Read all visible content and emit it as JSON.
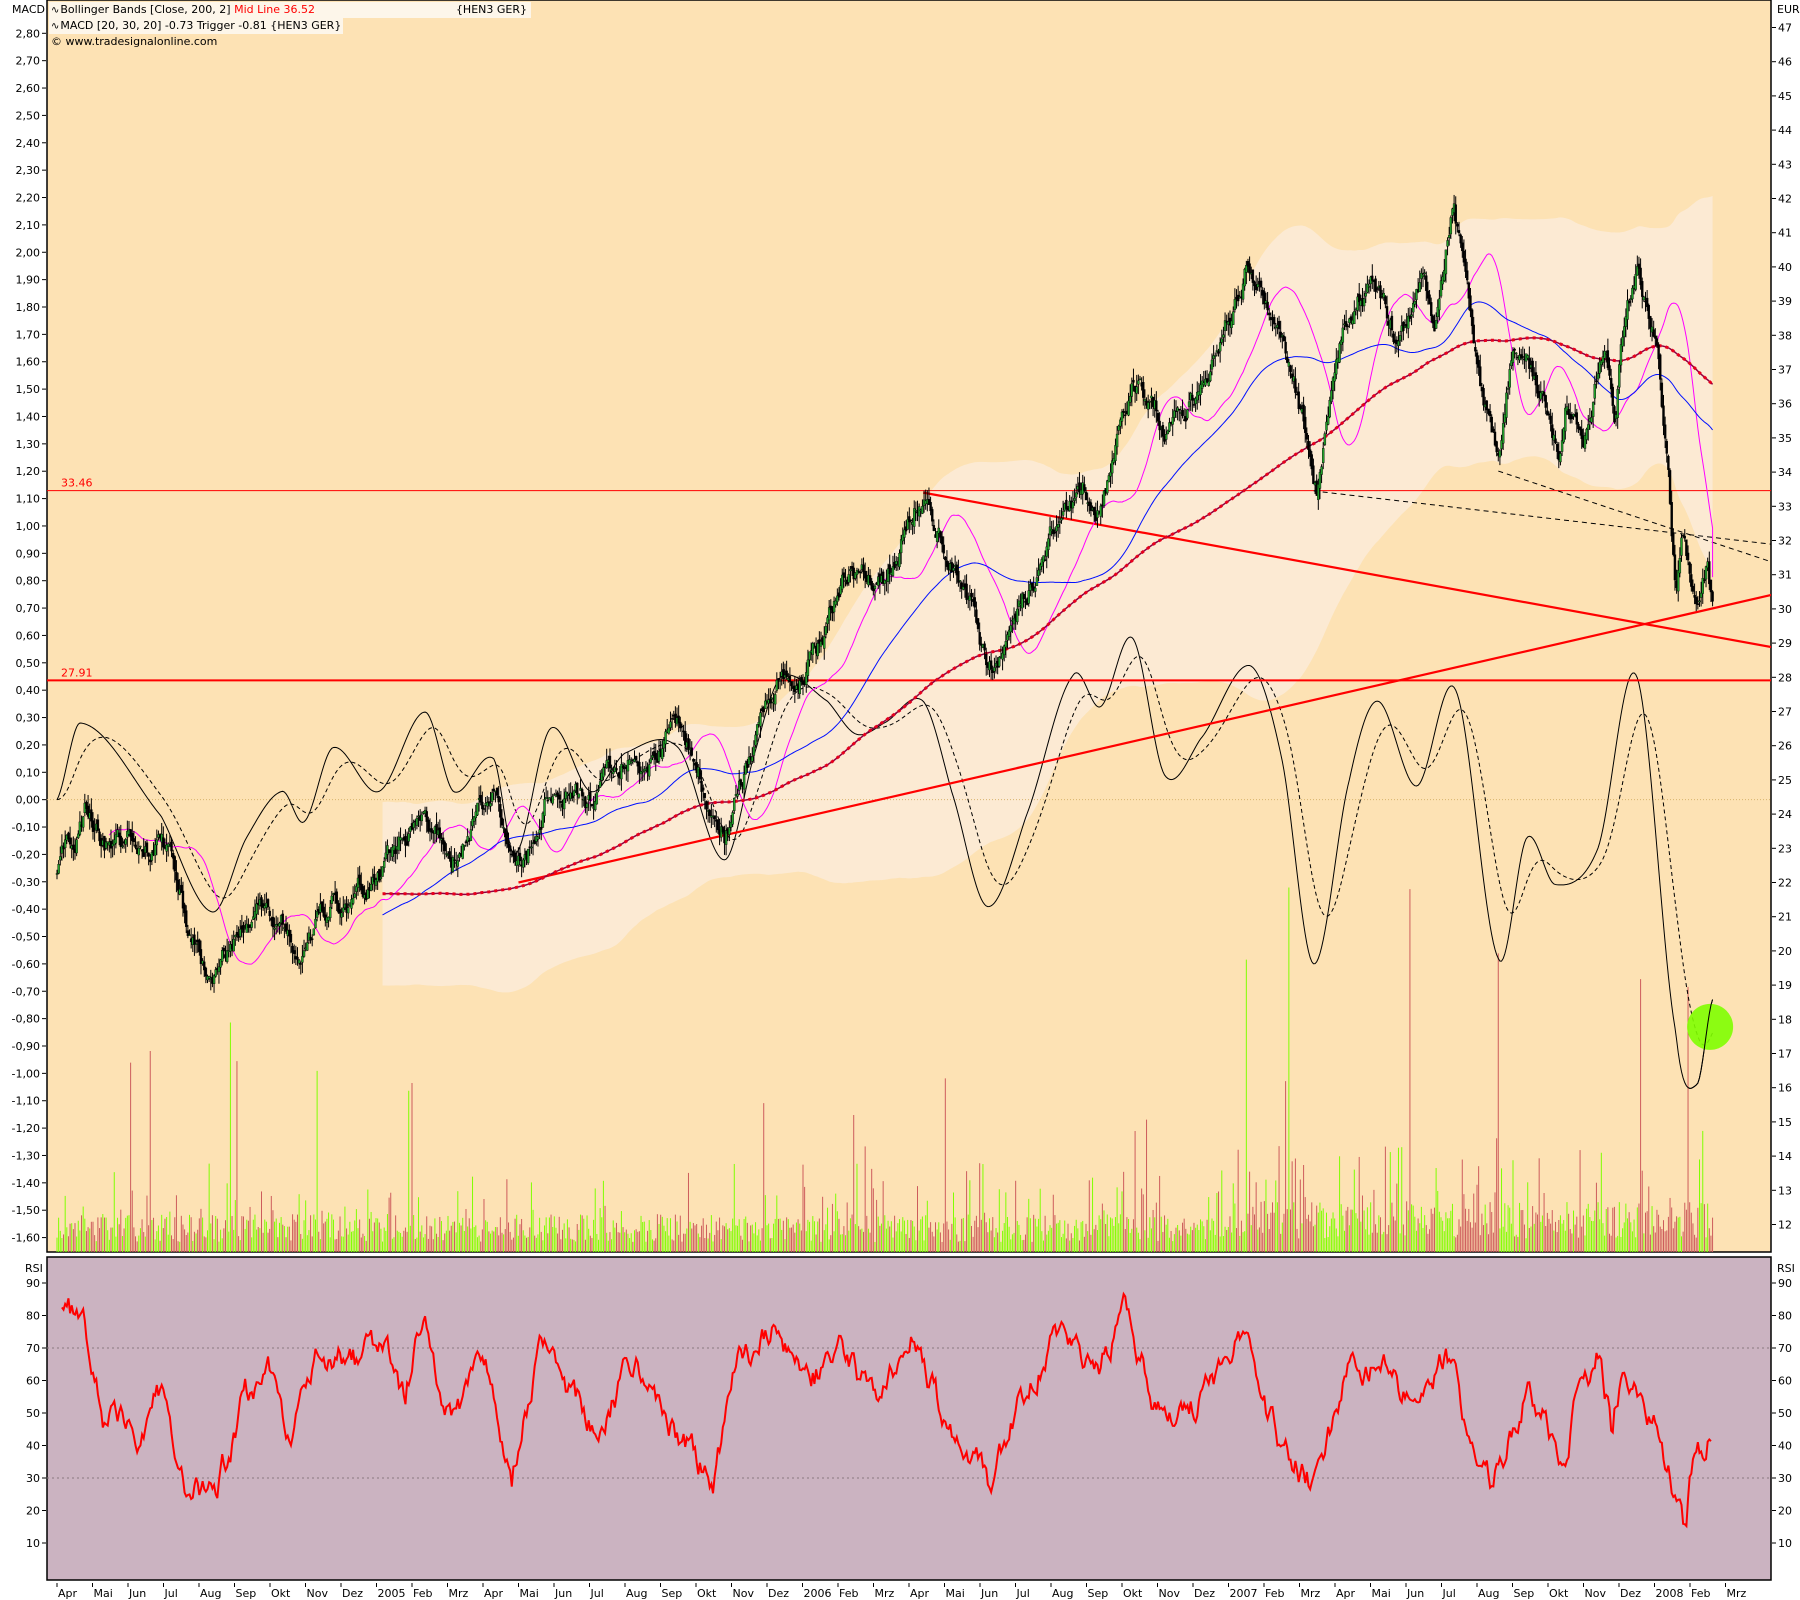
{
  "legend": {
    "bollinger": "Bollinger Bands [Close, 200, 2]",
    "mid_line": "Mid Line 36.52",
    "symbol": "{HEN3 GER}",
    "macd": "MACD [20, 30, 20] -0.73 Trigger -0.81 {HEN3 GER}",
    "copyright": "© www.tradesignalonline.com",
    "indicator_icon": "indicator-wave-icon"
  },
  "axes": {
    "left_title": "MACD",
    "right_title": "EUR",
    "rsi_left_title": "RSI",
    "rsi_right_title": "RSI",
    "macd_ticks": [
      "2,80",
      "2,70",
      "2,60",
      "2,50",
      "2,40",
      "2,30",
      "2,20",
      "2,10",
      "2,00",
      "1,90",
      "1,80",
      "1,70",
      "1,60",
      "1,50",
      "1,40",
      "1,30",
      "1,20",
      "1,10",
      "1,00",
      "0,90",
      "0,80",
      "0,70",
      "0,60",
      "0,50",
      "0,40",
      "0,30",
      "0,20",
      "0,10",
      "0,00",
      "-0,10",
      "-0,20",
      "-0,30",
      "-0,40",
      "-0,50",
      "-0,60",
      "-0,70",
      "-0,80",
      "-0,90",
      "-1,00",
      "-1,10",
      "-1,20",
      "-1,30",
      "-1,40",
      "-1,50",
      "-1,60"
    ],
    "eur_ticks": [
      "47",
      "46",
      "45",
      "44",
      "43",
      "42",
      "41",
      "40",
      "39",
      "38",
      "37",
      "36",
      "35",
      "34",
      "33",
      "32",
      "31",
      "30",
      "29",
      "28",
      "27",
      "26",
      "25",
      "24",
      "23",
      "22",
      "21",
      "20",
      "19",
      "18",
      "17",
      "16",
      "15",
      "14",
      "13",
      "12"
    ],
    "rsi_ticks": [
      "90",
      "80",
      "70",
      "60",
      "50",
      "40",
      "30",
      "20",
      "10"
    ],
    "months": [
      "Apr",
      "Mai",
      "Jun",
      "Jul",
      "Aug",
      "Sep",
      "Okt",
      "Nov",
      "Dez",
      "2005",
      "Feb",
      "Mrz",
      "Apr",
      "Mai",
      "Jun",
      "Jul",
      "Aug",
      "Sep",
      "Okt",
      "Nov",
      "Dez",
      "2006",
      "Feb",
      "Mrz",
      "Apr",
      "Mai",
      "Jun",
      "Jul",
      "Aug",
      "Sep",
      "Okt",
      "Nov",
      "Dez",
      "2007",
      "Feb",
      "Mrz",
      "Apr",
      "Mai",
      "Jun",
      "Jul",
      "Aug",
      "Sep",
      "Okt",
      "Nov",
      "Dez",
      "2008",
      "Feb",
      "Mrz"
    ]
  },
  "colors": {
    "main_bg": "#fde2b4",
    "band_fill": "#fcebd6",
    "rsi_bg": "#cbb3c1",
    "candle_up": "#22a02a",
    "candle_down": "#000000",
    "bollinger_mid": "#e8001c",
    "blue_ma": "#0010ff",
    "magenta_ma": "#ff00ff",
    "trendline": "#ff0000",
    "rsi_line": "#ff0000",
    "volume_up": "#80ff00",
    "volume_down": "#cd5c5c",
    "marker": "#80ff00"
  },
  "chart_data": [
    {
      "type": "candlestick",
      "panel": "price",
      "ylabel": "EUR",
      "ylim": [
        12,
        47
      ],
      "x_range": [
        "2004-04-01",
        "2008-03-31"
      ],
      "grid": false,
      "price_path": [
        [
          "2004-04-01",
          22.0
        ],
        [
          "2004-04-26",
          24.3
        ],
        [
          "2004-05-20",
          23.0
        ],
        [
          "2004-06-29",
          23.6
        ],
        [
          "2004-07-18",
          21.0
        ],
        [
          "2004-08-12",
          19.0
        ],
        [
          "2004-09-11",
          20.3
        ],
        [
          "2004-10-11",
          21.0
        ],
        [
          "2004-10-25",
          19.6
        ],
        [
          "2004-11-24",
          21.3
        ],
        [
          "2005-01-03",
          21.8
        ],
        [
          "2005-02-07",
          24.0
        ],
        [
          "2005-03-07",
          23.0
        ],
        [
          "2005-04-10",
          24.3
        ],
        [
          "2005-04-28",
          22.1
        ],
        [
          "2005-05-28",
          25.0
        ],
        [
          "2005-07-02",
          24.5
        ],
        [
          "2005-08-01",
          25.8
        ],
        [
          "2005-09-16",
          26.2
        ],
        [
          "2005-10-25",
          23.6
        ],
        [
          "2005-11-22",
          26.3
        ],
        [
          "2005-12-13",
          28.3
        ],
        [
          "2006-01-16",
          29.0
        ],
        [
          "2006-02-10",
          31.0
        ],
        [
          "2006-03-10",
          30.7
        ],
        [
          "2006-04-13",
          33.4
        ],
        [
          "2006-05-07",
          31.7
        ],
        [
          "2006-06-07",
          28.3
        ],
        [
          "2006-06-22",
          28.5
        ],
        [
          "2006-07-10",
          30.4
        ],
        [
          "2006-08-16",
          33.4
        ],
        [
          "2006-09-13",
          33.0
        ],
        [
          "2006-10-10",
          36.4
        ],
        [
          "2006-11-13",
          35.4
        ],
        [
          "2006-12-10",
          36.7
        ],
        [
          "2007-01-16",
          40.1
        ],
        [
          "2007-02-16",
          37.7
        ],
        [
          "2007-03-16",
          33.6
        ],
        [
          "2007-04-04",
          37.5
        ],
        [
          "2007-05-01",
          39.6
        ],
        [
          "2007-05-22",
          37.9
        ],
        [
          "2007-06-16",
          39.8
        ],
        [
          "2007-06-25",
          37.9
        ],
        [
          "2007-07-11",
          41.75
        ],
        [
          "2007-07-28",
          38.2
        ],
        [
          "2007-08-04",
          36.7
        ],
        [
          "2007-08-19",
          34.5
        ],
        [
          "2007-09-01",
          37.7
        ],
        [
          "2007-09-19",
          36.7
        ],
        [
          "2007-10-10",
          34.7
        ],
        [
          "2007-10-16",
          36.3
        ],
        [
          "2007-11-01",
          35.1
        ],
        [
          "2007-11-10",
          36.5
        ],
        [
          "2007-11-19",
          38.2
        ],
        [
          "2007-11-28",
          36.2
        ],
        [
          "2007-12-08",
          39.6
        ],
        [
          "2007-12-16",
          39.8
        ],
        [
          "2007-12-28",
          38.1
        ],
        [
          "2008-01-04",
          37.1
        ],
        [
          "2008-01-11",
          34.25
        ],
        [
          "2008-01-16",
          31.8
        ],
        [
          "2008-01-19",
          30.05
        ],
        [
          "2008-01-25",
          32.0
        ],
        [
          "2008-02-07",
          29.1
        ],
        [
          "2008-02-16",
          30.9
        ],
        [
          "2008-02-20",
          30.2
        ]
      ],
      "bollinger": {
        "period": 200,
        "deviations": 2,
        "mid_line_last": 36.52
      },
      "horizontal_lines": [
        {
          "value": 33.46,
          "label": "33.46"
        },
        {
          "value": 27.91,
          "label": "27.91"
        }
      ],
      "trendlines": [
        {
          "style": "solid",
          "from": [
            "2006-04-13",
            33.4
          ],
          "to": [
            "2008-04-15",
            28.85
          ]
        },
        {
          "style": "solid",
          "from": [
            "2005-05-01",
            22.0
          ],
          "to": [
            "2008-04-15",
            30.45
          ]
        },
        {
          "style": "dashed",
          "from": [
            "2007-03-13",
            33.45
          ],
          "to": [
            "2008-04-15",
            31.87
          ]
        },
        {
          "style": "dashed",
          "from": [
            "2007-08-19",
            34.03
          ],
          "to": [
            "2008-04-12",
            31.35
          ]
        }
      ],
      "highlight_marker": {
        "date": "2008-02-18",
        "macd": -0.83
      }
    },
    {
      "type": "line",
      "panel": "macd",
      "ylabel": "MACD",
      "ylim": [
        -1.6,
        2.8
      ],
      "params": [
        20,
        30,
        20
      ],
      "last_value": -0.73,
      "trigger_last": -0.81,
      "macd": [
        [
          "2004-04-01",
          0.0
        ],
        [
          "2004-04-21",
          0.28
        ],
        [
          "2004-06-29",
          -0.06
        ],
        [
          "2004-08-12",
          -0.41
        ],
        [
          "2004-09-11",
          -0.14
        ],
        [
          "2004-10-11",
          0.03
        ],
        [
          "2004-10-30",
          -0.08
        ],
        [
          "2004-11-24",
          0.19
        ],
        [
          "2005-01-03",
          0.03
        ],
        [
          "2005-02-12",
          0.32
        ],
        [
          "2005-03-06",
          0.03
        ],
        [
          "2005-04-10",
          0.15
        ],
        [
          "2005-04-28",
          -0.2
        ],
        [
          "2005-05-28",
          0.26
        ],
        [
          "2005-07-02",
          0.03
        ],
        [
          "2005-08-01",
          0.17
        ],
        [
          "2005-09-16",
          0.19
        ],
        [
          "2005-10-25",
          -0.22
        ],
        [
          "2005-11-22",
          0.19
        ],
        [
          "2005-12-13",
          0.45
        ],
        [
          "2006-01-22",
          0.36
        ],
        [
          "2006-02-16",
          0.24
        ],
        [
          "2006-03-10",
          0.28
        ],
        [
          "2006-04-13",
          0.36
        ],
        [
          "2006-05-07",
          0.03
        ],
        [
          "2006-06-07",
          -0.39
        ],
        [
          "2006-07-10",
          -0.06
        ],
        [
          "2006-08-19",
          0.45
        ],
        [
          "2006-09-13",
          0.34
        ],
        [
          "2006-10-10",
          0.59
        ],
        [
          "2006-11-07",
          0.09
        ],
        [
          "2006-12-07",
          0.22
        ],
        [
          "2007-01-19",
          0.49
        ],
        [
          "2007-02-16",
          0.15
        ],
        [
          "2007-03-13",
          -0.6
        ],
        [
          "2007-04-13",
          0.07
        ],
        [
          "2007-05-07",
          0.36
        ],
        [
          "2007-06-10",
          0.05
        ],
        [
          "2007-07-13",
          0.4
        ],
        [
          "2007-08-19",
          -0.58
        ],
        [
          "2007-09-13",
          -0.14
        ],
        [
          "2007-10-07",
          -0.31
        ],
        [
          "2007-11-13",
          -0.18
        ],
        [
          "2007-12-16",
          0.45
        ],
        [
          "2008-01-19",
          -0.85
        ],
        [
          "2008-02-07",
          -1.04
        ],
        [
          "2008-02-20",
          -0.73
        ]
      ]
    },
    {
      "type": "line",
      "panel": "rsi",
      "ylabel": "RSI",
      "ylim": [
        0,
        95
      ],
      "reference_lines": [
        70,
        30
      ],
      "rsi": [
        [
          "2004-04-05",
          84
        ],
        [
          "2004-04-25",
          75
        ],
        [
          "2004-05-10",
          50
        ],
        [
          "2004-06-10",
          45
        ],
        [
          "2004-07-01",
          58
        ],
        [
          "2004-07-20",
          25
        ],
        [
          "2004-08-15",
          25
        ],
        [
          "2004-09-10",
          55
        ],
        [
          "2004-10-01",
          62
        ],
        [
          "2004-10-20",
          40
        ],
        [
          "2004-11-15",
          70
        ],
        [
          "2004-12-15",
          65
        ],
        [
          "2005-01-10",
          72
        ],
        [
          "2005-01-25",
          55
        ],
        [
          "2005-02-10",
          82
        ],
        [
          "2005-03-05",
          45
        ],
        [
          "2005-04-01",
          72
        ],
        [
          "2005-04-25",
          30
        ],
        [
          "2005-05-20",
          68
        ],
        [
          "2005-07-05",
          45
        ],
        [
          "2005-08-10",
          68
        ],
        [
          "2005-09-05",
          50
        ],
        [
          "2005-10-15",
          28
        ],
        [
          "2005-11-05",
          64
        ],
        [
          "2005-12-05",
          76
        ],
        [
          "2006-01-10",
          62
        ],
        [
          "2006-02-05",
          68
        ],
        [
          "2006-03-01",
          55
        ],
        [
          "2006-04-05",
          76
        ],
        [
          "2006-05-01",
          48
        ],
        [
          "2006-06-10",
          27
        ],
        [
          "2006-07-05",
          55
        ],
        [
          "2006-08-10",
          75
        ],
        [
          "2006-09-10",
          62
        ],
        [
          "2006-10-05",
          80
        ],
        [
          "2006-11-01",
          50
        ],
        [
          "2006-12-01",
          52
        ],
        [
          "2007-01-10",
          72
        ],
        [
          "2007-02-15",
          40
        ],
        [
          "2007-03-15",
          27
        ],
        [
          "2007-04-10",
          62
        ],
        [
          "2007-05-10",
          68
        ],
        [
          "2007-06-10",
          48
        ],
        [
          "2007-07-05",
          67
        ],
        [
          "2007-07-25",
          42
        ],
        [
          "2007-08-15",
          30
        ],
        [
          "2007-09-15",
          57
        ],
        [
          "2007-10-01",
          45
        ],
        [
          "2007-10-15",
          30
        ],
        [
          "2007-10-25",
          53
        ],
        [
          "2007-11-15",
          70
        ],
        [
          "2007-11-25",
          45
        ],
        [
          "2007-12-05",
          68
        ],
        [
          "2008-01-01",
          48
        ],
        [
          "2008-01-15",
          30
        ],
        [
          "2008-01-28",
          13
        ],
        [
          "2008-02-01",
          30
        ],
        [
          "2008-02-16",
          42
        ],
        [
          "2008-02-20",
          41
        ]
      ]
    }
  ]
}
